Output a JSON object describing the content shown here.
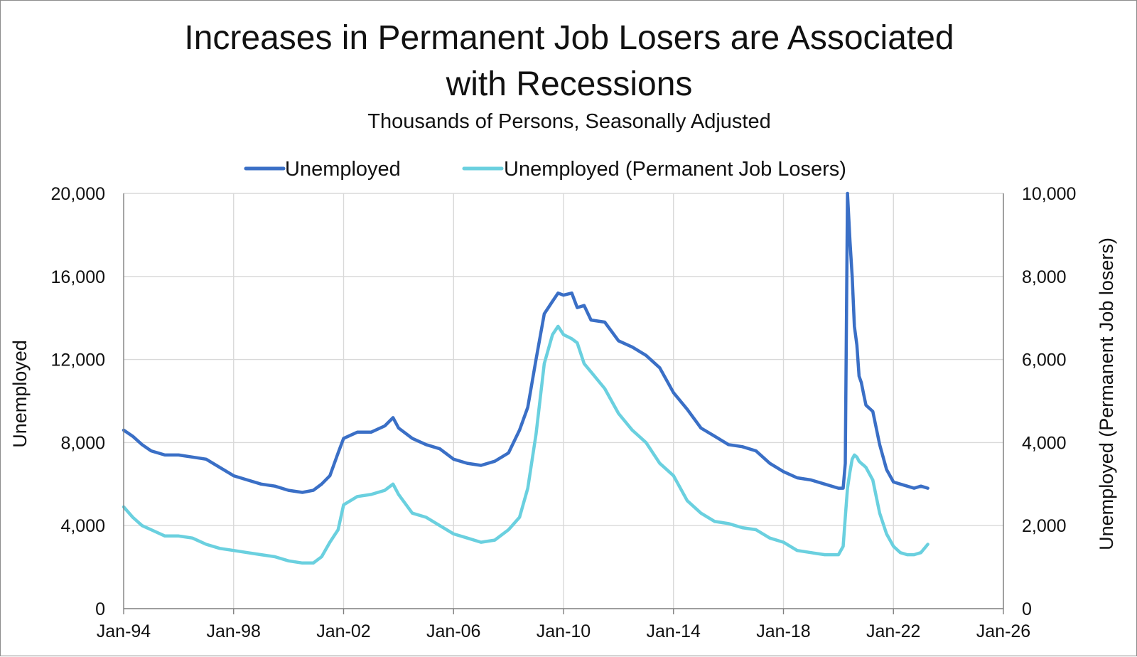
{
  "chart_data": {
    "type": "line",
    "title_lines": [
      "Increases in Permanent Job Losers are Associated",
      "with Recessions"
    ],
    "subtitle": "Thousands of Persons, Seasonally Adjusted",
    "xlabel": "",
    "ylabel": "Unemployed",
    "y2label": "Unemployed (Permanent Job losers)",
    "legend_position": "top-center",
    "grid": true,
    "xlim": [
      1994.0,
      2026.0
    ],
    "ylim": [
      0,
      20000
    ],
    "y2lim": [
      0,
      10000
    ],
    "x_ticks": [
      1994,
      1998,
      2002,
      2006,
      2010,
      2014,
      2018,
      2022,
      2026
    ],
    "x_tick_labels": [
      "Jan-94",
      "Jan-98",
      "Jan-02",
      "Jan-06",
      "Jan-10",
      "Jan-14",
      "Jan-18",
      "Jan-22",
      "Jan-26"
    ],
    "y_ticks": [
      0,
      4000,
      8000,
      12000,
      16000,
      20000
    ],
    "y_tick_labels": [
      "0",
      "4,000",
      "8,000",
      "12,000",
      "16,000",
      "20,000"
    ],
    "y2_ticks": [
      0,
      2000,
      4000,
      6000,
      8000,
      10000
    ],
    "y2_tick_labels": [
      "0",
      "2,000",
      "4,000",
      "6,000",
      "8,000",
      "10,000"
    ],
    "series": [
      {
        "name": "Unemployed",
        "axis": "left",
        "color": "#3a6fc6",
        "x": [
          1994.0,
          1994.33,
          1994.67,
          1995.0,
          1995.5,
          1996.0,
          1996.5,
          1997.0,
          1997.5,
          1998.0,
          1998.5,
          1999.0,
          1999.5,
          2000.0,
          2000.5,
          2000.9,
          2001.2,
          2001.5,
          2001.8,
          2002.0,
          2002.5,
          2003.0,
          2003.5,
          2003.8,
          2004.0,
          2004.5,
          2005.0,
          2005.5,
          2006.0,
          2006.5,
          2007.0,
          2007.5,
          2008.0,
          2008.4,
          2008.7,
          2009.0,
          2009.3,
          2009.6,
          2009.8,
          2010.0,
          2010.3,
          2010.5,
          2010.75,
          2011.0,
          2011.5,
          2012.0,
          2012.5,
          2013.0,
          2013.5,
          2014.0,
          2014.5,
          2015.0,
          2015.5,
          2016.0,
          2016.5,
          2017.0,
          2017.5,
          2018.0,
          2018.5,
          2019.0,
          2019.5,
          2020.0,
          2020.17,
          2020.25,
          2020.33,
          2020.42,
          2020.5,
          2020.58,
          2020.67,
          2020.75,
          2020.83,
          2020.92,
          2021.0,
          2021.25,
          2021.5,
          2021.75,
          2022.0,
          2022.25,
          2022.5,
          2022.75,
          2023.0,
          2023.25
        ],
        "y": [
          8600,
          8300,
          7900,
          7600,
          7400,
          7400,
          7300,
          7200,
          6800,
          6400,
          6200,
          6000,
          5900,
          5700,
          5600,
          5700,
          6000,
          6400,
          7500,
          8200,
          8500,
          8500,
          8800,
          9200,
          8700,
          8200,
          7900,
          7700,
          7200,
          7000,
          6900,
          7100,
          7500,
          8600,
          9700,
          12000,
          14200,
          14800,
          15200,
          15100,
          15200,
          14500,
          14600,
          13900,
          13800,
          12900,
          12600,
          12200,
          11600,
          10400,
          9600,
          8700,
          8300,
          7900,
          7800,
          7600,
          7000,
          6600,
          6300,
          6200,
          6000,
          5800,
          5800,
          7000,
          20000,
          17700,
          16000,
          13600,
          12700,
          11200,
          10900,
          10300,
          9800,
          9500,
          7900,
          6700,
          6100,
          6000,
          5900,
          5800,
          5900,
          5800
        ]
      },
      {
        "name": "Unemployed (Permanent Job Losers)",
        "axis": "right",
        "color": "#6ad0df",
        "x": [
          1994.0,
          1994.33,
          1994.67,
          1995.0,
          1995.5,
          1996.0,
          1996.5,
          1997.0,
          1997.5,
          1998.0,
          1998.5,
          1999.0,
          1999.5,
          2000.0,
          2000.5,
          2000.9,
          2001.2,
          2001.5,
          2001.8,
          2002.0,
          2002.5,
          2003.0,
          2003.5,
          2003.8,
          2004.0,
          2004.5,
          2005.0,
          2005.5,
          2006.0,
          2006.5,
          2007.0,
          2007.5,
          2008.0,
          2008.4,
          2008.7,
          2009.0,
          2009.3,
          2009.6,
          2009.8,
          2010.0,
          2010.3,
          2010.5,
          2010.75,
          2011.0,
          2011.5,
          2012.0,
          2012.5,
          2013.0,
          2013.5,
          2014.0,
          2014.5,
          2015.0,
          2015.5,
          2016.0,
          2016.5,
          2017.0,
          2017.5,
          2018.0,
          2018.5,
          2019.0,
          2019.5,
          2020.0,
          2020.17,
          2020.25,
          2020.33,
          2020.42,
          2020.5,
          2020.58,
          2020.67,
          2020.75,
          2020.83,
          2020.92,
          2021.0,
          2021.25,
          2021.5,
          2021.75,
          2022.0,
          2022.25,
          2022.5,
          2022.75,
          2023.0,
          2023.25
        ],
        "y": [
          2450,
          2200,
          2000,
          1900,
          1750,
          1750,
          1700,
          1550,
          1450,
          1400,
          1350,
          1300,
          1250,
          1150,
          1100,
          1100,
          1250,
          1600,
          1900,
          2500,
          2700,
          2750,
          2850,
          3000,
          2750,
          2300,
          2200,
          2000,
          1800,
          1700,
          1600,
          1650,
          1900,
          2200,
          2900,
          4200,
          5900,
          6600,
          6800,
          6600,
          6500,
          6400,
          5900,
          5700,
          5300,
          4700,
          4300,
          4000,
          3500,
          3200,
          2600,
          2300,
          2100,
          2050,
          1950,
          1900,
          1700,
          1600,
          1400,
          1350,
          1300,
          1300,
          1500,
          2200,
          2900,
          3300,
          3600,
          3700,
          3650,
          3550,
          3500,
          3450,
          3400,
          3100,
          2300,
          1800,
          1500,
          1350,
          1300,
          1300,
          1350,
          1550
        ]
      }
    ]
  }
}
